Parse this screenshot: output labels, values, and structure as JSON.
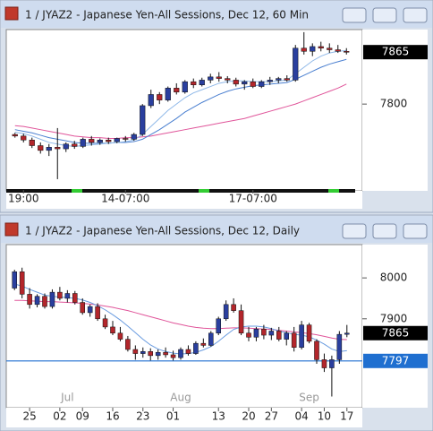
{
  "chart_data": [
    {
      "type": "candlestick",
      "title": "1 / JYAZ2 - Japanese Yen-All Sessions, Dec 12, 60 Min",
      "up_color": "#2a3f9e",
      "down_color": "#b3262b",
      "open": [
        7762,
        7760,
        7755,
        7748,
        7742,
        7746,
        7744,
        7750,
        7747,
        7756,
        7752,
        7755,
        7753,
        7757,
        7756,
        7762,
        7798,
        7812,
        7805,
        7820,
        7815,
        7828,
        7824,
        7830,
        7834,
        7832,
        7830,
        7825,
        7828,
        7822,
        7828,
        7830,
        7832,
        7830,
        7870,
        7866,
        7872,
        7870,
        7868,
        7866
      ],
      "high": [
        7764,
        7763,
        7758,
        7752,
        7750,
        7770,
        7752,
        7754,
        7758,
        7760,
        7757,
        7758,
        7758,
        7760,
        7764,
        7800,
        7818,
        7815,
        7822,
        7826,
        7830,
        7832,
        7833,
        7838,
        7840,
        7835,
        7833,
        7830,
        7832,
        7830,
        7834,
        7834,
        7836,
        7874,
        7890,
        7876,
        7878,
        7876,
        7874,
        7870
      ],
      "low": [
        7758,
        7752,
        7745,
        7738,
        7735,
        7706,
        7740,
        7744,
        7745,
        7748,
        7749,
        7750,
        7751,
        7753,
        7754,
        7760,
        7795,
        7800,
        7803,
        7812,
        7813,
        7820,
        7822,
        7826,
        7828,
        7826,
        7822,
        7818,
        7820,
        7820,
        7824,
        7826,
        7828,
        7828,
        7862,
        7860,
        7866,
        7864,
        7864,
        7862
      ],
      "close": [
        7760,
        7755,
        7748,
        7742,
        7746,
        7744,
        7750,
        7747,
        7756,
        7752,
        7755,
        7753,
        7757,
        7756,
        7762,
        7798,
        7812,
        7805,
        7820,
        7815,
        7828,
        7824,
        7830,
        7834,
        7832,
        7830,
        7825,
        7828,
        7822,
        7828,
        7830,
        7832,
        7830,
        7870,
        7866,
        7872,
        7870,
        7868,
        7866,
        7865
      ],
      "moving_averages": [
        {
          "color": "#e0559a",
          "values": [
            7773,
            7772,
            7770,
            7768,
            7766,
            7764,
            7762,
            7760,
            7759,
            7758,
            7758,
            7757,
            7757,
            7758,
            7758,
            7759,
            7760,
            7762,
            7764,
            7766,
            7768,
            7770,
            7772,
            7774,
            7776,
            7778,
            7780,
            7782,
            7785,
            7788,
            7791,
            7794,
            7797,
            7800,
            7804,
            7808,
            7812,
            7816,
            7820,
            7825
          ]
        },
        {
          "color": "#4a7fd0",
          "values": [
            7768,
            7766,
            7764,
            7761,
            7758,
            7756,
            7754,
            7752,
            7751,
            7751,
            7751,
            7751,
            7752,
            7752,
            7753,
            7756,
            7762,
            7768,
            7775,
            7782,
            7790,
            7796,
            7802,
            7807,
            7812,
            7816,
            7819,
            7821,
            7823,
            7824,
            7825,
            7826,
            7827,
            7831,
            7836,
            7841,
            7846,
            7850,
            7853,
            7856
          ]
        },
        {
          "color": "#8fb8e8",
          "values": [
            7765,
            7763,
            7760,
            7756,
            7752,
            7750,
            7748,
            7747,
            7748,
            7749,
            7750,
            7751,
            7752,
            7753,
            7755,
            7762,
            7772,
            7782,
            7792,
            7800,
            7808,
            7814,
            7818,
            7822,
            7826,
            7828,
            7829,
            7829,
            7828,
            7828,
            7828,
            7829,
            7830,
            7838,
            7846,
            7854,
            7860,
            7864,
            7866,
            7867
          ]
        }
      ],
      "categories": [
        null,
        "19:00",
        null,
        null,
        null,
        null,
        null,
        null,
        null,
        null,
        null,
        null,
        null,
        "14-07:00",
        null,
        null,
        null,
        null,
        null,
        null,
        null,
        null,
        null,
        null,
        null,
        null,
        null,
        null,
        "17-07:00",
        null,
        null,
        null,
        null,
        null,
        null,
        null,
        null,
        null,
        null,
        null
      ],
      "ylim": [
        7697,
        7891
      ],
      "yticks": [
        7800
      ],
      "last_price": 7865
    },
    {
      "type": "candlestick",
      "title": "1 / JYAZ2 - Japanese Yen-All Sessions, Dec 12, Daily",
      "up_color": "#2a3f9e",
      "down_color": "#b3262b",
      "open": [
        7975,
        8015,
        7960,
        7935,
        7955,
        7930,
        7965,
        7950,
        7962,
        7940,
        7915,
        7930,
        7900,
        7880,
        7865,
        7850,
        7825,
        7815,
        7820,
        7810,
        7818,
        7812,
        7805,
        7825,
        7815,
        7840,
        7835,
        7865,
        7900,
        7935,
        7920,
        7865,
        7855,
        7875,
        7860,
        7870,
        7850,
        7865,
        7830,
        7885,
        7845,
        7800,
        7780,
        7800,
        7862
      ],
      "high": [
        8020,
        8025,
        7975,
        7960,
        7962,
        7972,
        7978,
        7970,
        7968,
        7950,
        7935,
        7938,
        7910,
        7895,
        7880,
        7858,
        7835,
        7830,
        7828,
        7825,
        7830,
        7822,
        7830,
        7835,
        7845,
        7852,
        7870,
        7905,
        7945,
        7950,
        7935,
        7880,
        7880,
        7885,
        7878,
        7880,
        7870,
        7880,
        7895,
        7890,
        7850,
        7815,
        7810,
        7870,
        7885
      ],
      "low": [
        7970,
        7950,
        7925,
        7928,
        7925,
        7925,
        7945,
        7940,
        7935,
        7910,
        7905,
        7895,
        7875,
        7860,
        7845,
        7820,
        7800,
        7805,
        7798,
        7800,
        7805,
        7798,
        7800,
        7810,
        7812,
        7830,
        7832,
        7860,
        7895,
        7915,
        7860,
        7845,
        7845,
        7850,
        7848,
        7845,
        7835,
        7820,
        7825,
        7840,
        7790,
        7770,
        7710,
        7790,
        7855
      ],
      "close": [
        8015,
        7960,
        7935,
        7955,
        7930,
        7965,
        7950,
        7962,
        7940,
        7915,
        7930,
        7900,
        7880,
        7865,
        7850,
        7825,
        7815,
        7820,
        7810,
        7818,
        7812,
        7805,
        7825,
        7815,
        7840,
        7835,
        7865,
        7900,
        7935,
        7920,
        7865,
        7855,
        7875,
        7860,
        7870,
        7850,
        7865,
        7830,
        7885,
        7845,
        7800,
        7780,
        7800,
        7862,
        7865
      ],
      "moving_averages": [
        {
          "color": "#e0559a",
          "values": [
            7945,
            7945,
            7944,
            7943,
            7942,
            7942,
            7941,
            7940,
            7939,
            7938,
            7936,
            7934,
            7931,
            7928,
            7924,
            7920,
            7915,
            7910,
            7905,
            7900,
            7895,
            7890,
            7886,
            7882,
            7879,
            7877,
            7876,
            7876,
            7877,
            7878,
            7878,
            7877,
            7876,
            7875,
            7874,
            7872,
            7870,
            7868,
            7866,
            7864,
            7861,
            7857,
            7853,
            7850,
            7849
          ]
        },
        {
          "color": "#6a9ce0",
          "values": [
            7985,
            7980,
            7972,
            7965,
            7958,
            7955,
            7953,
            7952,
            7950,
            7946,
            7940,
            7932,
            7922,
            7910,
            7897,
            7882,
            7866,
            7850,
            7836,
            7826,
            7820,
            7816,
            7814,
            7815,
            7818,
            7824,
            7832,
            7845,
            7860,
            7874,
            7880,
            7882,
            7882,
            7880,
            7876,
            7870,
            7866,
            7862,
            7860,
            7856,
            7848,
            7838,
            7826,
            7820,
            7822
          ]
        }
      ],
      "categories": [
        null,
        null,
        "25",
        null,
        null,
        null,
        "02",
        null,
        null,
        "09",
        null,
        null,
        null,
        "16",
        null,
        null,
        null,
        "23",
        null,
        null,
        null,
        "01",
        null,
        null,
        null,
        null,
        null,
        "13",
        null,
        null,
        null,
        "20",
        null,
        null,
        "27",
        null,
        null,
        null,
        "04",
        null,
        null,
        "10",
        null,
        null,
        "17"
      ],
      "months": [
        null,
        null,
        null,
        null,
        null,
        null,
        null,
        "Jul",
        null,
        null,
        null,
        null,
        null,
        null,
        null,
        null,
        null,
        null,
        null,
        null,
        null,
        null,
        "Aug",
        null,
        null,
        null,
        null,
        null,
        null,
        null,
        null,
        null,
        null,
        null,
        null,
        null,
        null,
        null,
        null,
        "Sep",
        null,
        null,
        null,
        null,
        null
      ],
      "ylim": [
        7687,
        8077
      ],
      "yticks": [
        7900,
        8000
      ],
      "last_price": 7865,
      "price_line": {
        "value": 7797,
        "color": "#1f6fd0"
      }
    }
  ]
}
